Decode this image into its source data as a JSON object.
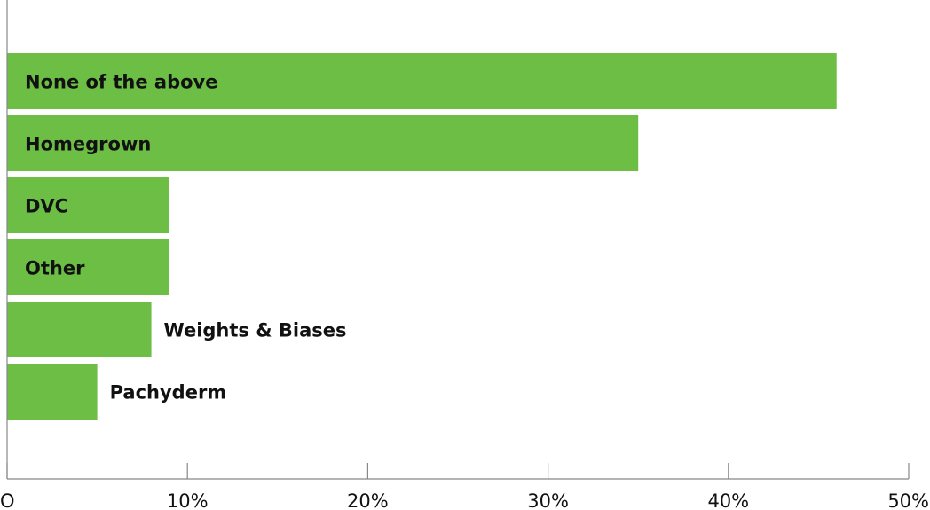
{
  "chart_data": {
    "type": "bar",
    "orientation": "horizontal",
    "categories": [
      "None of the above",
      "Homegrown",
      "DVC",
      "Other",
      "Weights & Biases",
      "Pachyderm"
    ],
    "values": [
      46,
      35,
      9,
      9,
      8,
      5
    ],
    "value_unit": "%",
    "xlim": [
      0,
      50
    ],
    "x_ticks": [
      0,
      10,
      20,
      30,
      40,
      50
    ],
    "x_tick_labels": [
      "O",
      "10%",
      "20%",
      "30%",
      "40%",
      "50%"
    ],
    "bar_color": "#6cbe45",
    "grid": false,
    "legend": "none",
    "title": "",
    "xlabel": "",
    "ylabel": ""
  }
}
